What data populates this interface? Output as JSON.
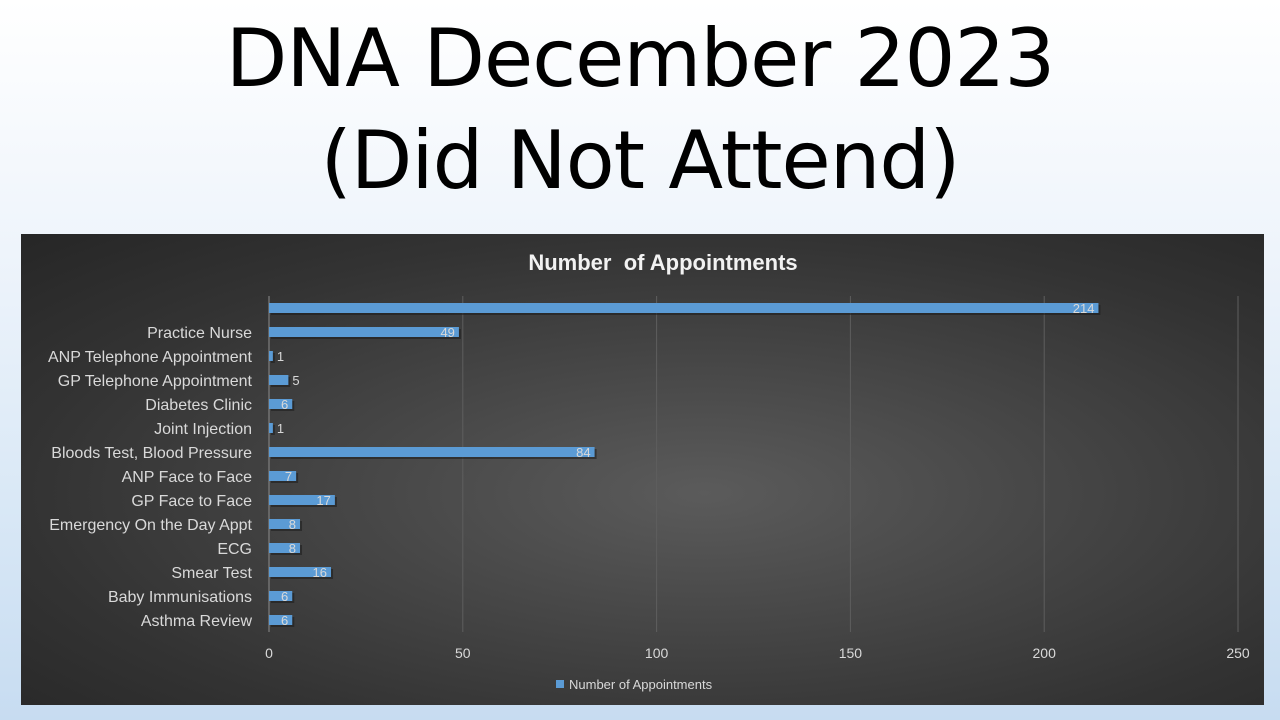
{
  "slide": {
    "title_line1": "DNA December 2023",
    "title_line2": "(Did Not Attend)"
  },
  "chart_data": {
    "type": "bar",
    "orientation": "horizontal",
    "title": "Number  of Appointments",
    "categories": [
      "",
      "Practice Nurse",
      "ANP Telephone Appointment",
      "GP Telephone Appointment",
      "Diabetes Clinic",
      "Joint Injection",
      "Bloods Test, Blood Pressure",
      "ANP Face to Face",
      "GP Face to Face",
      "Emergency On the Day Appt",
      "ECG",
      "Smear Test",
      "Baby Immunisations",
      "Asthma Review"
    ],
    "series": [
      {
        "name": "Number of Appointments",
        "values": [
          214,
          49,
          1,
          5,
          6,
          1,
          84,
          7,
          17,
          8,
          8,
          16,
          6,
          6
        ],
        "color": "#5b9bd5"
      }
    ],
    "xlim": [
      0,
      250
    ],
    "xticks": [
      0,
      50,
      100,
      150,
      200,
      250
    ],
    "grid": true,
    "legend_position": "bottom",
    "data_labels": true,
    "colors": {
      "background": "#404040",
      "bar": "#5b9bd5",
      "text": "#d9d9d9",
      "title": "#f2f2f2"
    }
  }
}
